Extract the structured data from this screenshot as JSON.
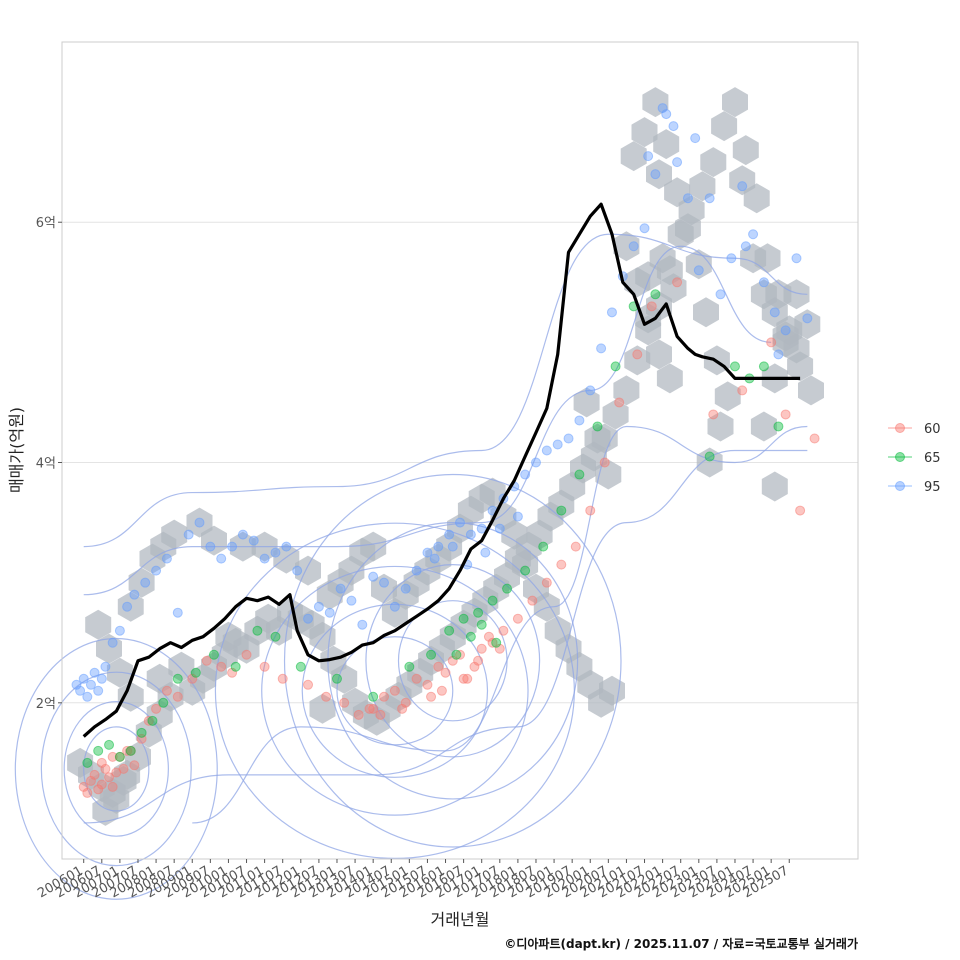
{
  "chart_data": {
    "type": "scatter",
    "xlabel": "거래년월",
    "ylabel": "매매가(억원)",
    "caption": "©디아파트(dapt.kr) / 2025.11.07 / 자료=국토교통부 실거래가",
    "ylim": [
      0.7,
      7.5
    ],
    "xlim": [
      2005.4,
      2027.4
    ],
    "y_ticks": [
      2,
      4,
      6
    ],
    "y_tick_labels": [
      "2억",
      "4억",
      "6억"
    ],
    "x_tick_labels": [
      "200601",
      "200607",
      "200701",
      "200707",
      "200801",
      "200807",
      "200901",
      "200907",
      "201001",
      "201007",
      "201101",
      "201107",
      "201201",
      "201207",
      "201301",
      "201307",
      "201401",
      "201407",
      "201501",
      "201507",
      "201601",
      "201607",
      "201701",
      "201707",
      "201801",
      "201807",
      "201901",
      "201907",
      "202001",
      "202007",
      "202101",
      "202107",
      "202201",
      "202207",
      "202301",
      "202307",
      "202401",
      "202407",
      "202501",
      "202507"
    ],
    "grid": true,
    "legend_position": "right",
    "legend": [
      {
        "name": "60",
        "color": "#F8766D"
      },
      {
        "name": "65",
        "color": "#00BA38"
      },
      {
        "name": "95",
        "color": "#619CFF"
      }
    ],
    "colors": {
      "hex": "#b0b7bf",
      "contour": "#8fa5e6",
      "line": "#000000",
      "grid": "#e4e4e4",
      "frame": "#cccccc"
    },
    "trend_line": {
      "name": "moving average",
      "x": [
        2006.0,
        2006.3,
        2006.6,
        2006.9,
        2007.2,
        2007.5,
        2007.8,
        2008.1,
        2008.4,
        2008.7,
        2009.0,
        2009.3,
        2009.6,
        2009.9,
        2010.2,
        2010.5,
        2010.8,
        2011.1,
        2011.4,
        2011.7,
        2011.9,
        2012.2,
        2012.5,
        2012.8,
        2013.1,
        2013.4,
        2013.7,
        2014.0,
        2014.3,
        2014.6,
        2014.9,
        2015.2,
        2015.5,
        2015.8,
        2016.1,
        2016.4,
        2016.7,
        2017.0,
        2017.3,
        2017.6,
        2017.9,
        2018.2,
        2018.5,
        2018.8,
        2019.1,
        2019.4,
        2019.7,
        2020.0,
        2020.3,
        2020.6,
        2020.9,
        2021.2,
        2021.5,
        2021.8,
        2022.1,
        2022.4,
        2022.7,
        2022.9,
        2023.1,
        2023.4,
        2023.7,
        2024.0,
        2024.3,
        2024.6,
        2024.9,
        2025.2,
        2025.5,
        2025.8
      ],
      "y": [
        1.72,
        1.8,
        1.86,
        1.93,
        2.1,
        2.35,
        2.38,
        2.45,
        2.5,
        2.46,
        2.52,
        2.55,
        2.62,
        2.7,
        2.8,
        2.87,
        2.85,
        2.88,
        2.82,
        2.9,
        2.6,
        2.4,
        2.35,
        2.36,
        2.38,
        2.42,
        2.48,
        2.5,
        2.56,
        2.6,
        2.66,
        2.72,
        2.78,
        2.85,
        2.95,
        3.1,
        3.28,
        3.35,
        3.52,
        3.7,
        3.85,
        4.05,
        4.25,
        4.45,
        4.9,
        5.75,
        5.9,
        6.05,
        6.15,
        5.9,
        5.5,
        5.4,
        5.15,
        5.2,
        5.32,
        5.05,
        4.95,
        4.9,
        4.88,
        4.86,
        4.8,
        4.7,
        4.7,
        4.7,
        4.7,
        4.7,
        4.7,
        4.7
      ]
    },
    "hexbin_centers": {
      "x": [
        2005.9,
        2006.2,
        2006.5,
        2006.8,
        2007.1,
        2006.6,
        2006.9,
        2007.2,
        2007.5,
        2007.8,
        2008.1,
        2008.4,
        2008.1,
        2008.7,
        2009.0,
        2009.3,
        2009.6,
        2009.9,
        2010.2,
        2010.5,
        2010.8,
        2011.1,
        2011.4,
        2011.7,
        2012.0,
        2012.3,
        2012.6,
        2012.9,
        2013.2,
        2013.5,
        2013.8,
        2014.1,
        2014.4,
        2014.7,
        2015.0,
        2015.3,
        2015.6,
        2015.9,
        2016.2,
        2016.5,
        2016.8,
        2017.1,
        2017.4,
        2017.7,
        2018.0,
        2018.3,
        2018.6,
        2018.9,
        2019.2,
        2019.5,
        2019.8,
        2020.1,
        2020.4,
        2020.7,
        2021.0,
        2021.3,
        2021.6,
        2021.9,
        2022.2,
        2022.5,
        2022.8,
        2023.1,
        2023.4,
        2023.7,
        2024.0,
        2024.3,
        2024.6,
        2024.9,
        2025.2,
        2025.5,
        2025.8,
        2026.1,
        2021.0,
        2021.3,
        2021.6,
        2021.9,
        2022.2,
        2023.6,
        2023.3,
        2024.8,
        2025.1,
        2025.4,
        2025.7,
        2025.1,
        2009.2,
        2009.6,
        2008.5,
        2008.2,
        2007.9,
        2007.6,
        2007.3,
        2010.4,
        2011.0,
        2011.6,
        2012.2,
        2012.8,
        2013.1,
        2013.4,
        2013.7,
        2014.0,
        2014.3,
        2014.6,
        2014.9,
        2015.2,
        2015.5,
        2015.8,
        2016.1,
        2016.4,
        2016.7,
        2017.0,
        2017.3,
        2017.6,
        2017.9,
        2018.2,
        2018.5,
        2018.8,
        2019.1,
        2019.4,
        2019.7,
        2020.0,
        2020.3,
        2020.6,
        2006.4,
        2006.7,
        2007.0,
        2007.3,
        2010.0,
        2012.6,
        2019.9,
        2020.2,
        2020.5
      ],
      "y": [
        1.5,
        1.4,
        1.3,
        1.25,
        1.35,
        1.1,
        1.2,
        1.4,
        1.55,
        1.75,
        1.9,
        2.05,
        2.2,
        2.3,
        2.1,
        2.2,
        2.3,
        2.4,
        2.5,
        2.45,
        2.6,
        2.7,
        2.6,
        2.75,
        2.7,
        2.65,
        2.55,
        2.35,
        2.2,
        2.0,
        1.9,
        1.85,
        1.95,
        2.05,
        2.15,
        2.25,
        2.35,
        2.45,
        2.55,
        2.65,
        2.75,
        2.85,
        2.95,
        3.05,
        3.2,
        3.3,
        3.4,
        3.55,
        3.65,
        3.8,
        3.95,
        4.05,
        4.2,
        4.4,
        4.6,
        4.85,
        5.1,
        5.3,
        5.6,
        5.9,
        6.1,
        6.3,
        6.5,
        6.8,
        7.0,
        6.6,
        6.2,
        5.7,
        5.4,
        5.1,
        4.8,
        4.6,
        5.8,
        5.5,
        5.2,
        4.9,
        4.7,
        4.3,
        4.0,
        4.3,
        4.7,
        5.0,
        5.4,
        3.8,
        3.5,
        3.35,
        3.4,
        3.3,
        3.2,
        3.0,
        2.8,
        3.3,
        3.3,
        3.2,
        3.1,
        2.9,
        3.0,
        3.1,
        3.25,
        3.3,
        2.95,
        2.75,
        2.9,
        3.0,
        3.1,
        3.2,
        3.3,
        3.45,
        3.6,
        3.7,
        3.75,
        3.55,
        3.4,
        3.15,
        2.95,
        2.8,
        2.6,
        2.45,
        2.3,
        2.15,
        2.0,
        2.1,
        2.65,
        2.45,
        2.25,
        2.05,
        2.55,
        1.95,
        4.5,
        4.2,
        3.9
      ]
    },
    "hexbin_extra_points": {
      "x": [
        2021.2,
        2021.5,
        2021.8,
        2022.1,
        2022.4,
        2022.7,
        2023.0,
        2024.2,
        2024.5,
        2024.8,
        2025.1,
        2025.4,
        2025.7,
        2026.0,
        2023.2,
        2023.5,
        2023.8,
        2022.0,
        2022.3,
        2021.6,
        2021.9
      ],
      "y": [
        6.55,
        6.75,
        7.0,
        6.65,
        6.25,
        5.95,
        5.65,
        6.35,
        5.7,
        5.4,
        5.25,
        5.05,
        4.95,
        5.15,
        5.25,
        4.85,
        4.55,
        5.7,
        5.45,
        5.55,
        6.4
      ]
    },
    "series": [
      {
        "name": "60",
        "x": [
          2006.0,
          2006.1,
          2006.2,
          2006.3,
          2006.4,
          2006.5,
          2006.6,
          2006.7,
          2006.8,
          2006.9,
          2007.0,
          2007.2,
          2007.4,
          2007.6,
          2007.8,
          2008.0,
          2008.3,
          2008.6,
          2009.0,
          2009.4,
          2009.8,
          2010.1,
          2010.5,
          2011.0,
          2011.5,
          2012.2,
          2012.7,
          2013.2,
          2013.6,
          2014.0,
          2014.3,
          2014.6,
          2014.9,
          2015.2,
          2015.5,
          2015.8,
          2016.0,
          2016.2,
          2016.4,
          2016.6,
          2016.8,
          2017.0,
          2017.3,
          2017.6,
          2018.0,
          2018.4,
          2018.8,
          2019.2,
          2019.6,
          2020.0,
          2020.4,
          2020.8,
          2021.3,
          2021.7,
          2022.4,
          2023.4,
          2024.2,
          2025.0,
          2025.4,
          2025.8,
          2026.2,
          2016.5,
          2016.9,
          2017.2,
          2017.5,
          2015.6,
          2015.9,
          2014.8,
          2014.2,
          2013.9,
          2006.5,
          2006.8,
          2007.1,
          2007.3
        ],
        "y": [
          1.3,
          1.25,
          1.35,
          1.4,
          1.28,
          1.32,
          1.45,
          1.38,
          1.3,
          1.42,
          1.55,
          1.6,
          1.48,
          1.7,
          1.85,
          1.95,
          2.1,
          2.05,
          2.2,
          2.35,
          2.3,
          2.25,
          2.4,
          2.3,
          2.2,
          2.15,
          2.05,
          2.0,
          1.9,
          1.95,
          2.05,
          2.1,
          2.0,
          2.2,
          2.15,
          2.3,
          2.25,
          2.35,
          2.4,
          2.2,
          2.3,
          2.45,
          2.5,
          2.6,
          2.7,
          2.85,
          3.0,
          3.15,
          3.3,
          3.6,
          4.0,
          4.5,
          4.9,
          5.3,
          5.5,
          4.4,
          4.6,
          5.0,
          4.4,
          3.6,
          4.2,
          2.2,
          2.35,
          2.55,
          2.45,
          2.05,
          2.1,
          1.95,
          1.9,
          1.95,
          1.5,
          1.55,
          1.45,
          1.6
        ]
      },
      {
        "name": "65",
        "x": [
          2006.1,
          2006.4,
          2006.7,
          2007.0,
          2007.3,
          2007.6,
          2007.9,
          2008.2,
          2008.6,
          2009.1,
          2009.6,
          2010.2,
          2010.8,
          2011.3,
          2012.0,
          2013.0,
          2014.0,
          2015.0,
          2015.6,
          2016.1,
          2016.5,
          2016.9,
          2017.3,
          2017.7,
          2018.2,
          2018.7,
          2019.2,
          2019.7,
          2020.2,
          2020.7,
          2021.2,
          2021.8,
          2023.3,
          2024.0,
          2024.4,
          2024.8,
          2025.2,
          2016.3,
          2016.7,
          2017.0,
          2017.4
        ],
        "y": [
          1.5,
          1.6,
          1.65,
          1.55,
          1.6,
          1.75,
          1.85,
          2.0,
          2.2,
          2.25,
          2.4,
          2.3,
          2.6,
          2.55,
          2.3,
          2.2,
          2.05,
          2.3,
          2.4,
          2.6,
          2.7,
          2.75,
          2.85,
          2.95,
          3.1,
          3.3,
          3.6,
          3.9,
          4.3,
          4.8,
          5.3,
          5.4,
          4.05,
          4.8,
          4.7,
          4.8,
          4.3,
          2.4,
          2.55,
          2.65,
          2.5
        ]
      },
      {
        "name": "95",
        "x": [
          2005.8,
          2005.9,
          2006.0,
          2006.1,
          2006.2,
          2006.3,
          2006.4,
          2006.5,
          2006.6,
          2006.8,
          2007.0,
          2007.2,
          2007.4,
          2007.7,
          2008.0,
          2008.3,
          2008.6,
          2008.9,
          2009.2,
          2009.5,
          2009.8,
          2010.1,
          2010.4,
          2010.7,
          2011.0,
          2011.3,
          2011.6,
          2011.9,
          2012.2,
          2012.5,
          2012.8,
          2013.1,
          2013.4,
          2013.7,
          2014.0,
          2014.3,
          2014.6,
          2014.9,
          2015.2,
          2015.5,
          2015.8,
          2016.1,
          2016.4,
          2016.7,
          2017.0,
          2017.3,
          2017.6,
          2017.9,
          2018.2,
          2018.5,
          2018.8,
          2019.1,
          2019.4,
          2019.7,
          2020.0,
          2020.3,
          2020.6,
          2020.9,
          2021.2,
          2021.5,
          2021.8,
          2022.1,
          2022.4,
          2022.7,
          2023.0,
          2023.3,
          2023.6,
          2023.9,
          2024.2,
          2024.5,
          2024.8,
          2025.1,
          2025.4,
          2025.7,
          2026.0,
          2021.6,
          2022.0,
          2022.3,
          2022.9,
          2024.3,
          2025.2,
          2015.7,
          2016.2,
          2016.6,
          2017.1,
          2017.5,
          2018.0
        ],
        "y": [
          2.15,
          2.1,
          2.2,
          2.05,
          2.15,
          2.25,
          2.1,
          2.2,
          2.3,
          2.5,
          2.6,
          2.8,
          2.9,
          3.0,
          3.1,
          3.2,
          2.75,
          3.4,
          3.5,
          3.3,
          3.2,
          3.3,
          3.4,
          3.35,
          3.2,
          3.25,
          3.3,
          3.1,
          2.7,
          2.8,
          2.75,
          2.95,
          2.85,
          2.65,
          3.05,
          3.0,
          2.8,
          2.95,
          3.1,
          3.25,
          3.3,
          3.4,
          3.5,
          3.4,
          3.45,
          3.6,
          3.7,
          3.8,
          3.9,
          4.0,
          4.1,
          4.15,
          4.2,
          4.35,
          4.6,
          4.95,
          5.25,
          5.55,
          5.8,
          5.95,
          6.4,
          6.9,
          6.5,
          6.2,
          5.6,
          6.2,
          5.4,
          5.7,
          6.3,
          5.9,
          5.5,
          5.25,
          5.1,
          5.7,
          5.2,
          6.55,
          6.95,
          6.8,
          6.7,
          5.8,
          4.9,
          3.2,
          3.3,
          3.15,
          3.25,
          3.45,
          3.55
        ]
      }
    ]
  }
}
